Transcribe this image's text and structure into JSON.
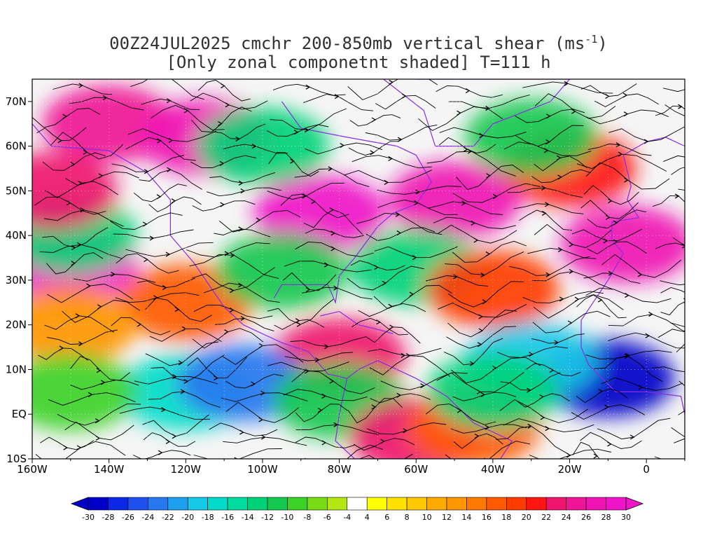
{
  "title": {
    "line1": "00Z24JUL2025 cmchr 200-850mb vertical shear (ms",
    "superscript": "-1",
    "line1_end": ")",
    "line2": "[Only zonal componetnt shaded] T=111 h"
  },
  "map": {
    "projection": "cylindrical equidistant",
    "lon_range": [
      -160,
      10
    ],
    "lat_range": [
      -10,
      75
    ],
    "streamline_color": "#000000",
    "coastline_color": "#8a2be2",
    "x_axis_labels": [
      "160W",
      "140W",
      "120W",
      "100W",
      "80W",
      "60W",
      "40W",
      "20W",
      "0"
    ],
    "y_axis_labels": [
      "10S",
      "EQ",
      "10N",
      "20N",
      "30N",
      "40N",
      "50N",
      "60N",
      "70N"
    ]
  },
  "colorbar": {
    "labels": [
      "-30",
      "-28",
      "-26",
      "-24",
      "-22",
      "-20",
      "-18",
      "-16",
      "-14",
      "-12",
      "-10",
      "-8",
      "-6",
      "-4",
      "4",
      "6",
      "8",
      "10",
      "12",
      "14",
      "16",
      "18",
      "20",
      "22",
      "24",
      "26",
      "28",
      "30"
    ],
    "colors": [
      "#0000c8",
      "#0a28e6",
      "#1e50f0",
      "#2878f0",
      "#1ea0f0",
      "#14c8e6",
      "#00dcc8",
      "#00dca0",
      "#00d278",
      "#14c850",
      "#3cd228",
      "#78dc14",
      "#b4e614",
      "#ffffff",
      "#ffff00",
      "#ffe100",
      "#ffc800",
      "#ffaa00",
      "#ff9600",
      "#ff7800",
      "#ff5a00",
      "#ff3c00",
      "#ff1414",
      "#f0146e",
      "#f01496",
      "#f014b4",
      "#f014c8"
    ],
    "under_color": "#0000c8",
    "over_color": "#f014c8"
  },
  "chart_data": {
    "type": "heatmap",
    "description_variable": "200-850mb vertical shear, zonal component shaded (ms-1)",
    "x_range": [
      -160,
      10
    ],
    "y_range": [
      -10,
      75
    ],
    "shear_regions": [
      {
        "lon": -140,
        "lat": 65,
        "value": 24
      },
      {
        "lon": -115,
        "lat": 62,
        "value": 26
      },
      {
        "lon": -85,
        "lat": 45,
        "value": 28
      },
      {
        "lon": -50,
        "lat": 48,
        "value": 26
      },
      {
        "lon": -150,
        "lat": 33,
        "value": 28
      },
      {
        "lon": -150,
        "lat": 40,
        "value": -14
      },
      {
        "lon": -155,
        "lat": 50,
        "value": 22
      },
      {
        "lon": -20,
        "lat": 55,
        "value": 20
      },
      {
        "lon": -5,
        "lat": 38,
        "value": 26
      },
      {
        "lon": -120,
        "lat": 25,
        "value": 16
      },
      {
        "lon": -95,
        "lat": 32,
        "value": -12
      },
      {
        "lon": -60,
        "lat": 33,
        "value": -14
      },
      {
        "lon": -40,
        "lat": 28,
        "value": 18
      },
      {
        "lon": -80,
        "lat": 13,
        "value": 22
      },
      {
        "lon": -120,
        "lat": 5,
        "value": -18
      },
      {
        "lon": -105,
        "lat": 7,
        "value": -24
      },
      {
        "lon": -80,
        "lat": 3,
        "value": -12
      },
      {
        "lon": -60,
        "lat": -5,
        "value": 22
      },
      {
        "lon": -45,
        "lat": -3,
        "value": 16
      },
      {
        "lon": -10,
        "lat": 8,
        "value": -30
      },
      {
        "lon": -30,
        "lat": 12,
        "value": -20
      },
      {
        "lon": -40,
        "lat": 5,
        "value": -14
      },
      {
        "lon": -100,
        "lat": 60,
        "value": -14
      },
      {
        "lon": -30,
        "lat": 62,
        "value": -12
      },
      {
        "lon": -150,
        "lat": 20,
        "value": 12
      },
      {
        "lon": -150,
        "lat": 5,
        "value": -10
      }
    ]
  }
}
